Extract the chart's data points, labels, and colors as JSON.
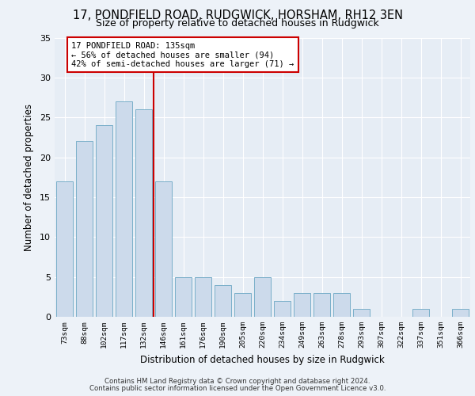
{
  "title_line1": "17, PONDFIELD ROAD, RUDGWICK, HORSHAM, RH12 3EN",
  "title_line2": "Size of property relative to detached houses in Rudgwick",
  "xlabel": "Distribution of detached houses by size in Rudgwick",
  "ylabel": "Number of detached properties",
  "categories": [
    "73sqm",
    "88sqm",
    "102sqm",
    "117sqm",
    "132sqm",
    "146sqm",
    "161sqm",
    "176sqm",
    "190sqm",
    "205sqm",
    "220sqm",
    "234sqm",
    "249sqm",
    "263sqm",
    "278sqm",
    "293sqm",
    "307sqm",
    "322sqm",
    "337sqm",
    "351sqm",
    "366sqm"
  ],
  "values": [
    17,
    22,
    24,
    27,
    26,
    17,
    5,
    5,
    4,
    3,
    5,
    2,
    3,
    3,
    3,
    1,
    0,
    0,
    1,
    0,
    1
  ],
  "bar_color": "#ccdaeb",
  "bar_edgecolor": "#7aafc9",
  "vline_color": "#cc0000",
  "vline_x": 4,
  "annotation_text": "17 PONDFIELD ROAD: 135sqm\n← 56% of detached houses are smaller (94)\n42% of semi-detached houses are larger (71) →",
  "annotation_box_facecolor": "#ffffff",
  "annotation_box_edgecolor": "#cc0000",
  "ylim": [
    0,
    35
  ],
  "yticks": [
    0,
    5,
    10,
    15,
    20,
    25,
    30,
    35
  ],
  "footer_line1": "Contains HM Land Registry data © Crown copyright and database right 2024.",
  "footer_line2": "Contains public sector information licensed under the Open Government Licence v3.0.",
  "bg_color": "#edf2f8",
  "plot_bg_color": "#e6edf5",
  "grid_color": "#ffffff",
  "title1_fontsize": 10.5,
  "title2_fontsize": 9.0,
  "bar_width": 0.85
}
